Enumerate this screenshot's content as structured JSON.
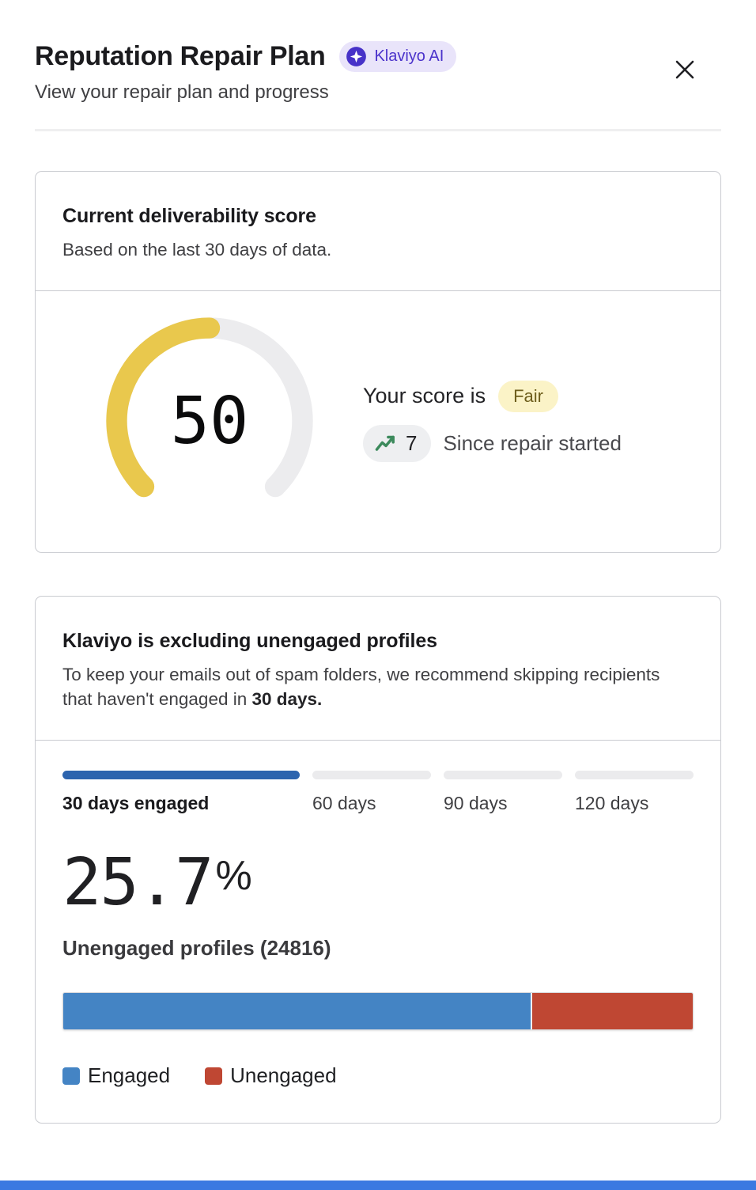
{
  "header": {
    "title": "Reputation Repair Plan",
    "badge_label": "Klaviyo AI",
    "subtitle": "View your repair plan and progress"
  },
  "score_card": {
    "title": "Current deliverability score",
    "subtitle": "Based on the last 30 days of data.",
    "score": "50",
    "score_prefix": "Your score is",
    "rating": "Fair",
    "delta": "7",
    "delta_caption": "Since repair started",
    "gauge": {
      "value": 50,
      "max": 100,
      "sweep_deg": 270,
      "track_color": "#ECECEE",
      "value_color": "#E9C84D"
    }
  },
  "exclusion_card": {
    "title": "Klaviyo is excluding unengaged profiles",
    "body_prefix": "To keep your emails out of spam folders, we recommend skipping recipients that haven't engaged in ",
    "body_bold": "30 days.",
    "segments": [
      {
        "label": "30 days engaged",
        "active": true
      },
      {
        "label": "60 days",
        "active": false
      },
      {
        "label": "90 days",
        "active": false
      },
      {
        "label": "120 days",
        "active": false
      }
    ],
    "percent_value": "25.7",
    "percent_suffix": "%",
    "profiles_label": "Unengaged profiles (24816)",
    "bar": {
      "engaged_pct": 74.3,
      "unengaged_pct": 25.7
    },
    "legend": [
      {
        "label": "Engaged",
        "color": "#4484C4"
      },
      {
        "label": "Unengaged",
        "color": "#BF4733"
      }
    ]
  },
  "chart_data": [
    {
      "type": "gauge",
      "title": "Current deliverability score",
      "value": 50,
      "max": 100,
      "rating": "Fair",
      "delta_since_repair": 7,
      "value_color": "#E9C84D",
      "track_color": "#ECECEE"
    },
    {
      "type": "bar",
      "title": "Engaged vs Unengaged profiles",
      "categories": [
        "Profiles"
      ],
      "series": [
        {
          "name": "Engaged",
          "values": [
            74.3
          ],
          "color": "#4484C4"
        },
        {
          "name": "Unengaged",
          "values": [
            25.7
          ],
          "color": "#BF4733"
        }
      ],
      "unengaged_count": 24816,
      "legend_position": "bottom",
      "orientation": "horizontal-stacked"
    }
  ],
  "colors": {
    "badge_bg": "#E9E4FA",
    "badge_text": "#4B33CB",
    "rating_pill_bg": "#FBF3C7",
    "rating_pill_text": "#6E5E1C",
    "segment_active": "#2D64AE",
    "segment_inactive": "#EBEBED",
    "trend_green": "#3C8A5C",
    "bottom_bar": "#3B79E1"
  }
}
